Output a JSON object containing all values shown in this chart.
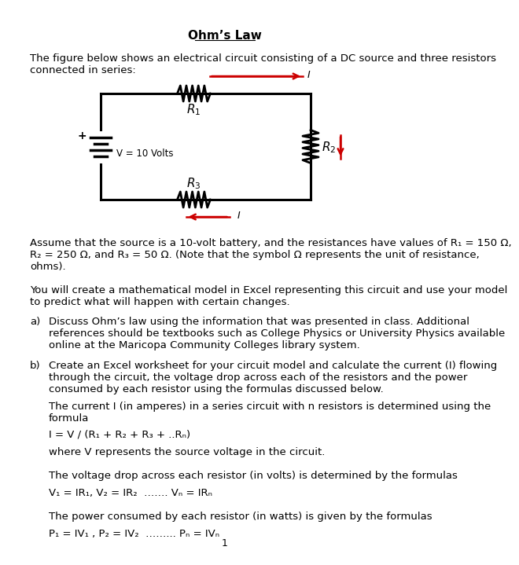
{
  "title": "Ohm’s Law",
  "intro_text": "The figure below shows an electrical circuit consisting of a DC source and three resistors\nconnected in series:",
  "assume_text": "Assume that the source is a 10-volt battery, and the resistances have values of R₁ = 150 Ω,\nR₂ = 250 Ω, and R₃ = 50 Ω. (Note that the symbol Ω represents the unit of resistance,\nohms).",
  "you_text": "You will create a mathematical model in Excel representing this circuit and use your model\nto predict what will happen with certain changes.",
  "a_label": "a)",
  "a_text": "Discuss Ohm’s law using the information that was presented in class. Additional\nreferences should be textbooks such as College Physics or University Physics available\nonline at the Maricopa Community Colleges library system.",
  "b_label": "b)",
  "b_text": "Create an Excel worksheet for your circuit model and calculate the current (I) flowing\nthrough the circuit, the voltage drop across each of the resistors and the power\nconsumed by each resistor using the formulas discussed below.",
  "current_text": "The current I (in amperes) in a series circuit with n resistors is determined using the\nformula",
  "formula1": "I = V / (R₁ + R₂ + R₃ + ..Rₙ)",
  "where_text": "where V represents the source voltage in the circuit.",
  "voltage_drop_text": "The voltage drop across each resistor (in volts) is determined by the formulas",
  "formula2": "V₁ = IR₁, V₂ = IR₂  ……. Vₙ = IRₙ",
  "power_text": "The power consumed by each resistor (in watts) is given by the formulas",
  "formula3": "P₁ = IV₁ , P₂ = IV₂  ……... Pₙ = IVₙ",
  "page_num": "1",
  "bg_color": "#ffffff",
  "text_color": "#000000",
  "circuit_line_color": "#000000",
  "current_arrow_color": "#cc0000",
  "font_size_title": 11,
  "font_size_body": 9.5
}
